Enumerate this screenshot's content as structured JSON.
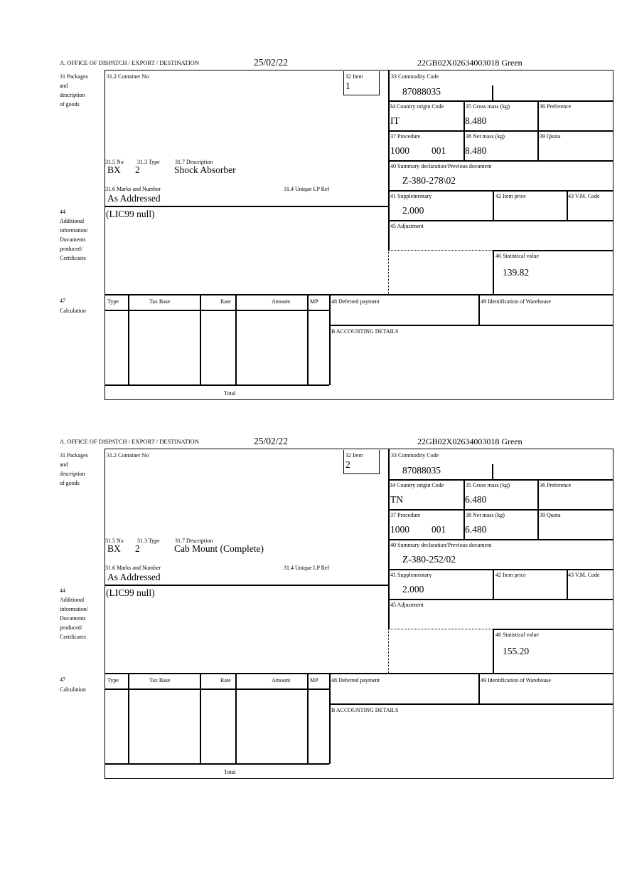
{
  "forms": [
    {
      "header": {
        "office": "A.  OFFICE OF DISPATCH / EXPORT / DESTINATION",
        "date": "25/02/22",
        "reference": "22GB02X02634003018    Green"
      },
      "labels": {
        "packages": "31 Packages",
        "and": "and",
        "description": "description",
        "of_goods": "of goods",
        "container": "31.2 Container No",
        "item": "32 Item",
        "no": "31.5 No",
        "type": "31.3 Type",
        "desc": "31.7 Description",
        "marks": "31.6 Marks and Number",
        "unique": "31.4 Unique LP Ref",
        "l44": "44",
        "l44a": "Additional",
        "l44b": "information/",
        "l44c": "Documents",
        "l44d": "produced/",
        "l44e": "Certificates",
        "commodity": "33 Commodity Code",
        "country": "34 Country origin Code",
        "gross": "35 Gross mass (kg)",
        "pref": "36 Preference",
        "procedure": "37 Procedure",
        "net": "38 Net mass (kg)",
        "quota": "39 Quota",
        "summary": "40 Summary declaration/Previous document",
        "supp": "41 Supplementary",
        "price": "42 Item price",
        "vm": "43 V.M. Code",
        "adj": "45 Adjustment",
        "stat": "46 Statistical value",
        "l47": "47",
        "calc": "Calculation",
        "c_type": "Type",
        "c_base": "Tax Base",
        "c_rate": "Rate",
        "c_amount": "Amount",
        "c_mp": "MP",
        "deferred": "48 Deferred payment",
        "warehouse": "49 Identification of Warehouse",
        "accounting": "B ACCOUNTING DETAILS",
        "total": "Total"
      },
      "values": {
        "item": "1",
        "no": "BX",
        "type": "2",
        "desc": "Shock Absorber",
        "marks": "As Addressed",
        "info": "(LIC99 null)",
        "commodity": "87088035",
        "country": "IT",
        "gross": "8.480",
        "procedure": "1000",
        "proc2": "001",
        "net": "8.480",
        "summary": "Z-380-278\\02",
        "supp": "2.000",
        "stat": "139.82"
      }
    },
    {
      "header": {
        "office": "A.  OFFICE OF DISPATCH / EXPORT / DESTINATION",
        "date": "25/02/22",
        "reference": "22GB02X02634003018    Green"
      },
      "labels": {
        "packages": "31 Packages",
        "and": "and",
        "description": "description",
        "of_goods": "of goods",
        "container": "31.2 Container No",
        "item": "32 Item",
        "no": "31.5 No",
        "type": "31.3 Type",
        "desc": "31.7 Description",
        "marks": "31.6 Marks and Number",
        "unique": "31.4 Unique LP Ref",
        "l44": "44",
        "l44a": "Additional",
        "l44b": "information/",
        "l44c": "Documents",
        "l44d": "produced/",
        "l44e": "Certificates",
        "commodity": "33 Commodity Code",
        "country": "34 Country origin Code",
        "gross": "35 Gross mass (kg)",
        "pref": "36 Preference",
        "procedure": "37 Procedure",
        "net": "38 Net mass (kg)",
        "quota": "39 Quota",
        "summary": "40 Summary declaration/Previous document",
        "supp": "41 Supplementary",
        "price": "42 Item price",
        "vm": "43 V.M. Code",
        "adj": "45 Adjustment",
        "stat": "46 Statistical value",
        "l47": "47",
        "calc": "Calculation",
        "c_type": "Type",
        "c_base": "Tax Base",
        "c_rate": "Rate",
        "c_amount": "Amount",
        "c_mp": "MP",
        "deferred": "48 Deferred payment",
        "warehouse": "49 Identification of Warehouse",
        "accounting": "B ACCOUNTING DETAILS",
        "total": "Total"
      },
      "values": {
        "item": "2",
        "no": "BX",
        "type": "2",
        "desc": "Cab Mount (Complete)",
        "marks": "As Addressed",
        "info": "(LIC99 null)",
        "commodity": "87088035",
        "country": "TN",
        "gross": "6.480",
        "procedure": "1000",
        "proc2": "001",
        "net": "6.480",
        "summary": "Z-380-252/02",
        "supp": "2.000",
        "stat": "155.20"
      }
    }
  ]
}
